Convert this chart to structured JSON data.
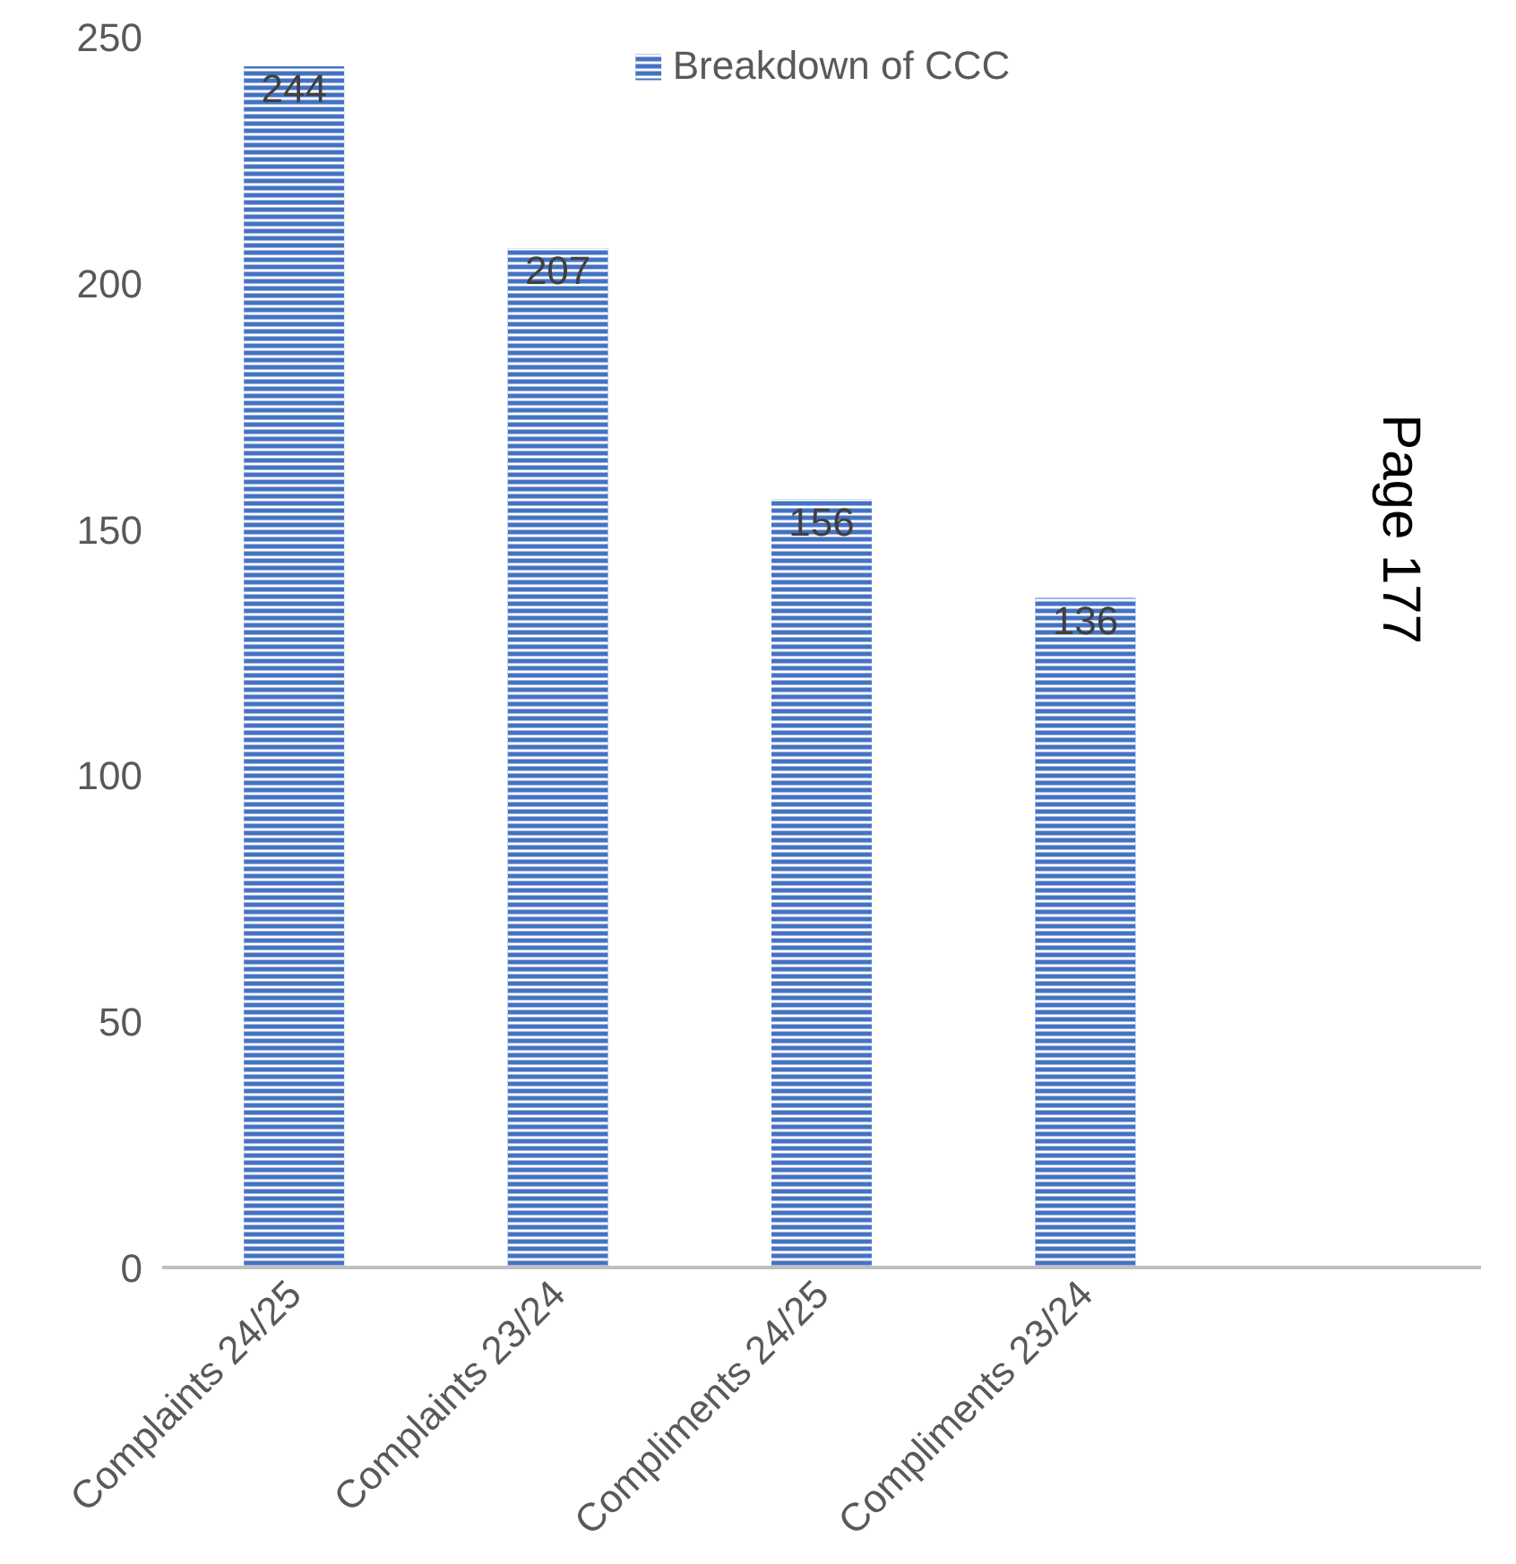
{
  "chart_data": {
    "type": "bar",
    "categories": [
      "Complaints 24/25",
      "Complaints 23/24",
      "Compliments 24/25",
      "Compliments 23/24",
      null
    ],
    "series": [
      {
        "name": "Breakdown of CCC",
        "color": "#4472c4",
        "values": [
          244,
          207,
          156,
          136,
          null
        ]
      }
    ],
    "ylim": [
      0,
      250
    ],
    "yticks": [
      0,
      50,
      100,
      150,
      200,
      250
    ],
    "data_labels": true,
    "grid": false,
    "legend": "top",
    "annotations": [
      "Page 177"
    ]
  }
}
